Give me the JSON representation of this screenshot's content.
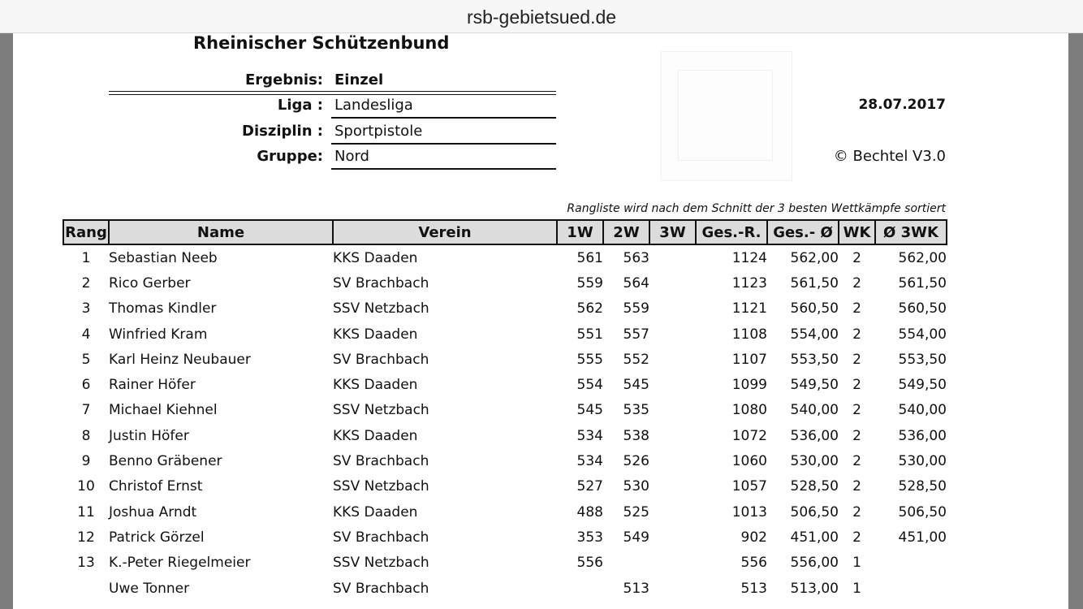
{
  "browser": {
    "url": "rsb-gebietsued.de"
  },
  "header": {
    "title": "Rheinischer Schützenbund",
    "fields": [
      {
        "label": "Ergebnis:",
        "value": "Einzel"
      },
      {
        "label": "Liga :",
        "value": "Landesliga"
      },
      {
        "label": "Disziplin :",
        "value": "Sportpistole"
      },
      {
        "label": "Gruppe:",
        "value": "Nord"
      }
    ],
    "date": "28.07.2017",
    "copyright": "© Bechtel V3.0",
    "note": "Rangliste wird nach dem Schnitt der 3 besten Wettkämpfe sortiert"
  },
  "table": {
    "columns": [
      "Rang",
      "Name",
      "Verein",
      "1W",
      "2W",
      "3W",
      "Ges.-R.",
      "Ges.- Ø",
      "WK",
      "Ø 3WK"
    ],
    "rows": [
      [
        "1",
        "Sebastian Neeb",
        "KKS Daaden",
        "561",
        "563",
        "",
        "1124",
        "562,00",
        "2",
        "562,00"
      ],
      [
        "2",
        "Rico Gerber",
        "SV Brachbach",
        "559",
        "564",
        "",
        "1123",
        "561,50",
        "2",
        "561,50"
      ],
      [
        "3",
        "Thomas Kindler",
        "SSV Netzbach",
        "562",
        "559",
        "",
        "1121",
        "560,50",
        "2",
        "560,50"
      ],
      [
        "4",
        "Winfried Kram",
        "KKS Daaden",
        "551",
        "557",
        "",
        "1108",
        "554,00",
        "2",
        "554,00"
      ],
      [
        "5",
        "Karl Heinz Neubauer",
        "SV Brachbach",
        "555",
        "552",
        "",
        "1107",
        "553,50",
        "2",
        "553,50"
      ],
      [
        "6",
        "Rainer Höfer",
        "KKS Daaden",
        "554",
        "545",
        "",
        "1099",
        "549,50",
        "2",
        "549,50"
      ],
      [
        "7",
        "Michael Kiehnel",
        "SSV Netzbach",
        "545",
        "535",
        "",
        "1080",
        "540,00",
        "2",
        "540,00"
      ],
      [
        "8",
        "Justin Höfer",
        "KKS Daaden",
        "534",
        "538",
        "",
        "1072",
        "536,00",
        "2",
        "536,00"
      ],
      [
        "9",
        "Benno Gräbener",
        "SV Brachbach",
        "534",
        "526",
        "",
        "1060",
        "530,00",
        "2",
        "530,00"
      ],
      [
        "10",
        "Christof Ernst",
        "SSV Netzbach",
        "527",
        "530",
        "",
        "1057",
        "528,50",
        "2",
        "528,50"
      ],
      [
        "11",
        "Joshua Arndt",
        "KKS Daaden",
        "488",
        "525",
        "",
        "1013",
        "506,50",
        "2",
        "506,50"
      ],
      [
        "12",
        "Patrick Görzel",
        "SV Brachbach",
        "353",
        "549",
        "",
        "902",
        "451,00",
        "2",
        "451,00"
      ],
      [
        "13",
        "K.-Peter Riegelmeier",
        "SSV Netzbach",
        "556",
        "",
        "",
        "556",
        "556,00",
        "1",
        ""
      ],
      [
        "",
        "Uwe Tonner",
        "SV Brachbach",
        "",
        "513",
        "",
        "513",
        "513,00",
        "1",
        ""
      ]
    ]
  }
}
